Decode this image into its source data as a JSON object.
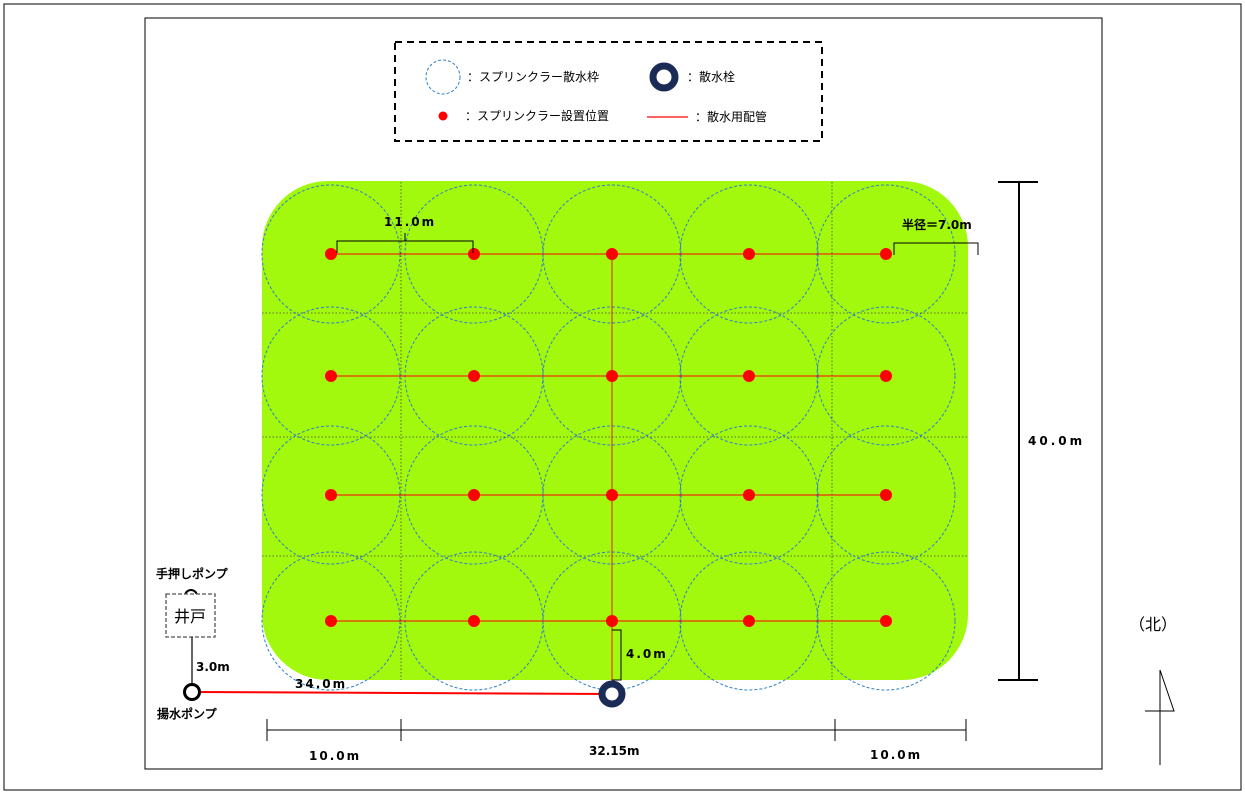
{
  "legend": {
    "items": [
      {
        "symbol": "dashed-circle",
        "label": "：スプリンクラー散水枠"
      },
      {
        "symbol": "hydrant",
        "label": "：散水栓"
      },
      {
        "symbol": "red-dot",
        "label": "：スプリンクラー設置位置"
      },
      {
        "symbol": "red-line",
        "label": "：散水用配管"
      }
    ]
  },
  "labels": {
    "spacing": "11.0m",
    "radius": "半径＝7.0m",
    "height": "40.0m",
    "hydrant_offset": "4.0m",
    "pipe_length": "34.0m",
    "well_to_pump": "3.0m",
    "well": "井戸",
    "hand_pump": "手押しポンプ",
    "lift_pump": "揚水ポンプ",
    "width_left": "10.0m",
    "width_middle": "32.15m",
    "width_right": "10.0m",
    "north": "（北）"
  },
  "colors": {
    "field": "#a2f90e",
    "sprinkler": "#ff0000",
    "pipe": "#ff0000",
    "circle": "#2f80c8",
    "hydrant": "#1a2c55"
  },
  "sprinklers": {
    "rows": 4,
    "cols": 5
  }
}
